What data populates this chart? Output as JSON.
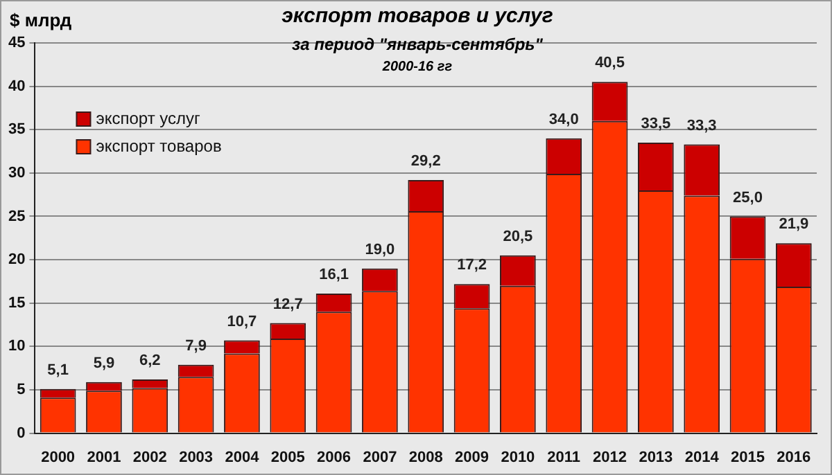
{
  "chart_data": {
    "type": "bar",
    "title": "экспорт товаров и услуг",
    "subtitle": "за период \"январь-сентябрь\"",
    "annotations": [
      "2000-16 гг"
    ],
    "ylabel": "$ млрд",
    "categories": [
      "2000",
      "2001",
      "2002",
      "2003",
      "2004",
      "2005",
      "2006",
      "2007",
      "2008",
      "2009",
      "2010",
      "2011",
      "2012",
      "2013",
      "2014",
      "2015",
      "2016"
    ],
    "stacked": true,
    "series": [
      {
        "name": "экспорт товаров",
        "color": "#ff3300",
        "values": [
          4.1,
          4.9,
          5.2,
          6.5,
          9.2,
          10.9,
          14.0,
          16.4,
          25.6,
          14.4,
          17.0,
          29.9,
          36.0,
          28.0,
          27.4,
          20.1,
          16.9
        ]
      },
      {
        "name": "экспорт услуг",
        "color": "#cc0000",
        "values": [
          1.0,
          1.0,
          1.0,
          1.4,
          1.5,
          1.8,
          2.1,
          2.6,
          3.6,
          2.8,
          3.5,
          4.1,
          4.5,
          5.5,
          5.9,
          4.9,
          5.0
        ]
      }
    ],
    "totals": [
      "5,1",
      "5,9",
      "6,2",
      "7,9",
      "10,7",
      "12,7",
      "16,1",
      "19,0",
      "29,2",
      "17,2",
      "20,5",
      "34,0",
      "40,5",
      "33,5",
      "33,3",
      "25,0",
      "21,9"
    ],
    "ylim": [
      0,
      45
    ],
    "yticks": [
      0,
      5,
      10,
      15,
      20,
      25,
      30,
      35,
      40,
      45
    ],
    "grid": "y",
    "legend": "top left"
  }
}
